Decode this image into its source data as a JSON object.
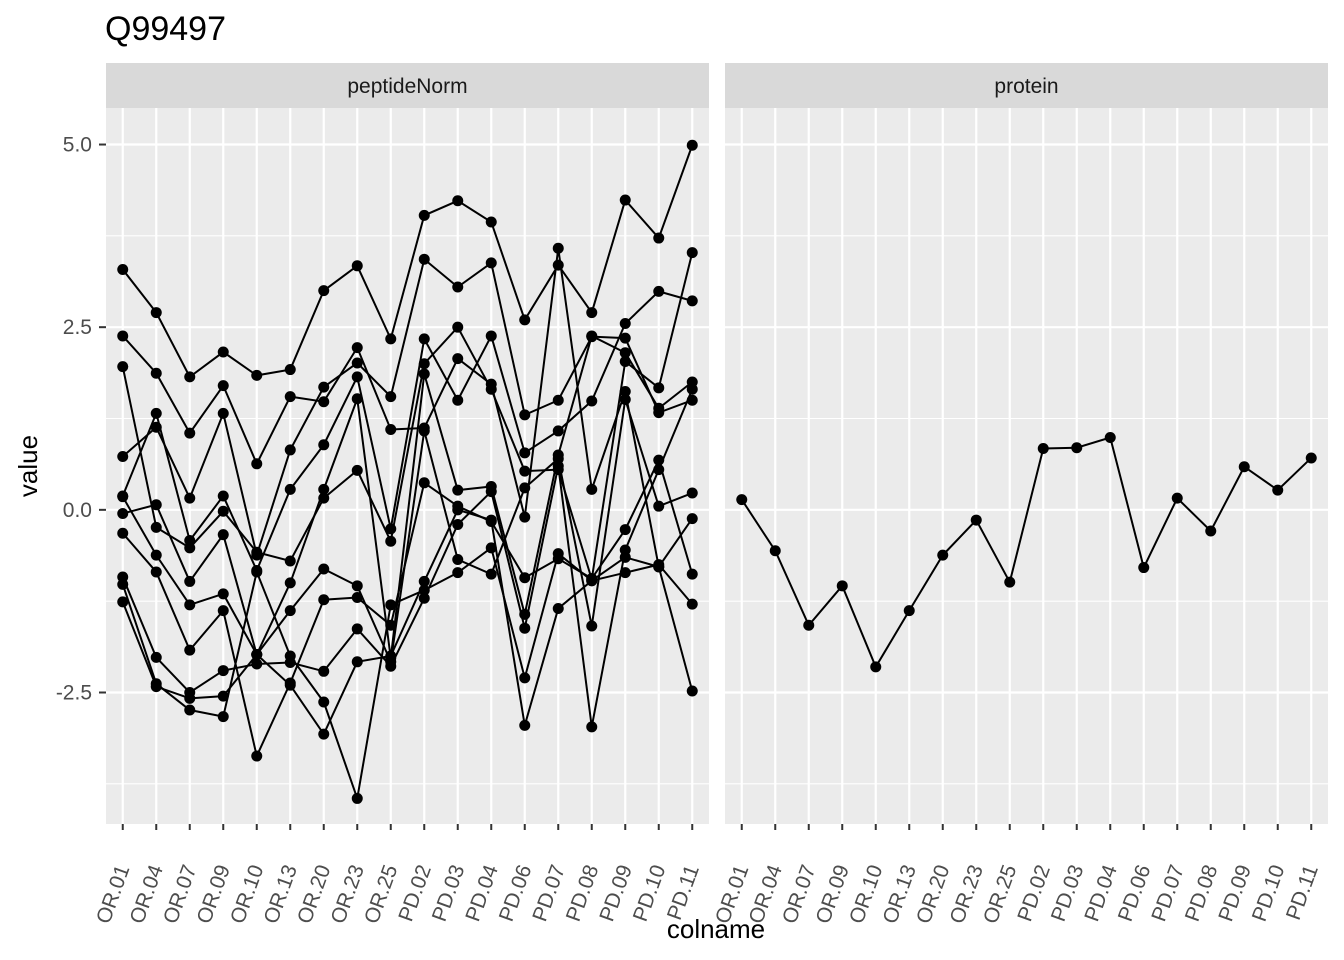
{
  "chart_data": {
    "type": "line",
    "title": "Q99497",
    "xlabel": "colname",
    "ylabel": "value",
    "ylim": [
      -4.3,
      5.5
    ],
    "yticks": [
      -2.5,
      0.0,
      2.5,
      5.0
    ],
    "ytick_labels": [
      "-2.5",
      "0.0",
      "2.5",
      "5.0"
    ],
    "grid": true,
    "categories": [
      "OR.01",
      "OR.04",
      "OR.07",
      "OR.09",
      "OR.10",
      "OR.13",
      "OR.20",
      "OR.23",
      "OR.25",
      "PD.02",
      "PD.03",
      "PD.04",
      "PD.06",
      "PD.07",
      "PD.08",
      "PD.09",
      "PD.10",
      "PD.11"
    ],
    "panels": [
      {
        "name": "peptideNorm",
        "series": [
          {
            "values": [
              2.38,
              1.87,
              1.05,
              1.7,
              0.63,
              1.55,
              1.48,
              2.22,
              1.1,
              1.12,
              2.07,
              1.72,
              -0.1,
              3.58,
              0.28,
              1.62,
              -0.78,
              -0.12
            ]
          },
          {
            "values": [
              3.29,
              2.7,
              1.82,
              2.16,
              1.84,
              1.92,
              3.0,
              3.34,
              2.34,
              4.03,
              4.23,
              3.94,
              2.6,
              3.35,
              2.7,
              4.24,
              3.72,
              4.99
            ]
          },
          {
            "values": [
              0.73,
              1.13,
              0.16,
              1.32,
              -0.62,
              0.82,
              1.68,
              2.01,
              1.55,
              3.43,
              3.05,
              3.38,
              1.3,
              1.5,
              2.37,
              2.35,
              1.33,
              1.5
            ]
          },
          {
            "values": [
              0.19,
              1.32,
              -0.42,
              0.19,
              -0.83,
              0.28,
              0.89,
              1.82,
              -0.26,
              2.34,
              1.5,
              2.38,
              0.78,
              1.08,
              1.49,
              2.55,
              2.99,
              2.86
            ]
          },
          {
            "values": [
              1.96,
              -0.24,
              -0.52,
              -0.02,
              -0.58,
              -0.7,
              0.16,
              0.54,
              -0.43,
              2.0,
              2.5,
              1.65,
              0.53,
              0.55,
              -0.95,
              2.03,
              1.67,
              3.52
            ]
          },
          {
            "values": [
              -0.05,
              0.07,
              -0.98,
              -0.34,
              -1.98,
              -1.0,
              0.28,
              1.52,
              -2.03,
              1.86,
              0.27,
              0.32,
              -1.43,
              0.75,
              2.38,
              2.15,
              1.39,
              1.75
            ]
          },
          {
            "values": [
              0.18,
              -0.62,
              -1.3,
              -1.15,
              -1.98,
              -1.38,
              -0.81,
              -1.04,
              -2.08,
              1.08,
              -0.68,
              -0.88,
              0.3,
              0.7,
              -1.59,
              1.51,
              0.05,
              0.23
            ]
          },
          {
            "values": [
              -0.32,
              -0.85,
              -1.92,
              -1.38,
              -3.37,
              -2.37,
              -1.23,
              -1.2,
              -1.58,
              0.37,
              0.05,
              -0.16,
              -0.93,
              -0.67,
              -0.94,
              -0.27,
              0.68,
              -0.88
            ]
          },
          {
            "values": [
              -0.92,
              -2.02,
              -2.5,
              -2.2,
              -2.11,
              -2.09,
              -2.21,
              -1.63,
              -2.14,
              -1.21,
              -0.2,
              0.25,
              -1.62,
              0.6,
              -2.97,
              -0.55,
              0.55,
              1.65
            ]
          },
          {
            "values": [
              -1.02,
              -2.38,
              -2.74,
              -2.83,
              -0.85,
              -2.0,
              -2.63,
              -3.95,
              -1.3,
              -1.1,
              -0.86,
              -0.52,
              -2.3,
              -0.6,
              -0.97,
              -0.86,
              -0.75,
              -1.29
            ]
          },
          {
            "values": [
              -1.26,
              -2.42,
              -2.58,
              -2.55,
              -1.98,
              -2.4,
              -3.07,
              -2.08,
              -2.0,
              -0.98,
              0.0,
              -0.14,
              -2.95,
              -1.35,
              -0.97,
              -0.65,
              -0.78,
              -2.48
            ]
          }
        ]
      },
      {
        "name": "protein",
        "series": [
          {
            "values": [
              0.14,
              -0.56,
              -1.58,
              -1.04,
              -2.15,
              -1.38,
              -0.62,
              -0.14,
              -0.99,
              0.84,
              0.85,
              0.99,
              -0.79,
              0.16,
              -0.29,
              0.59,
              0.27,
              0.71
            ]
          }
        ]
      }
    ]
  }
}
